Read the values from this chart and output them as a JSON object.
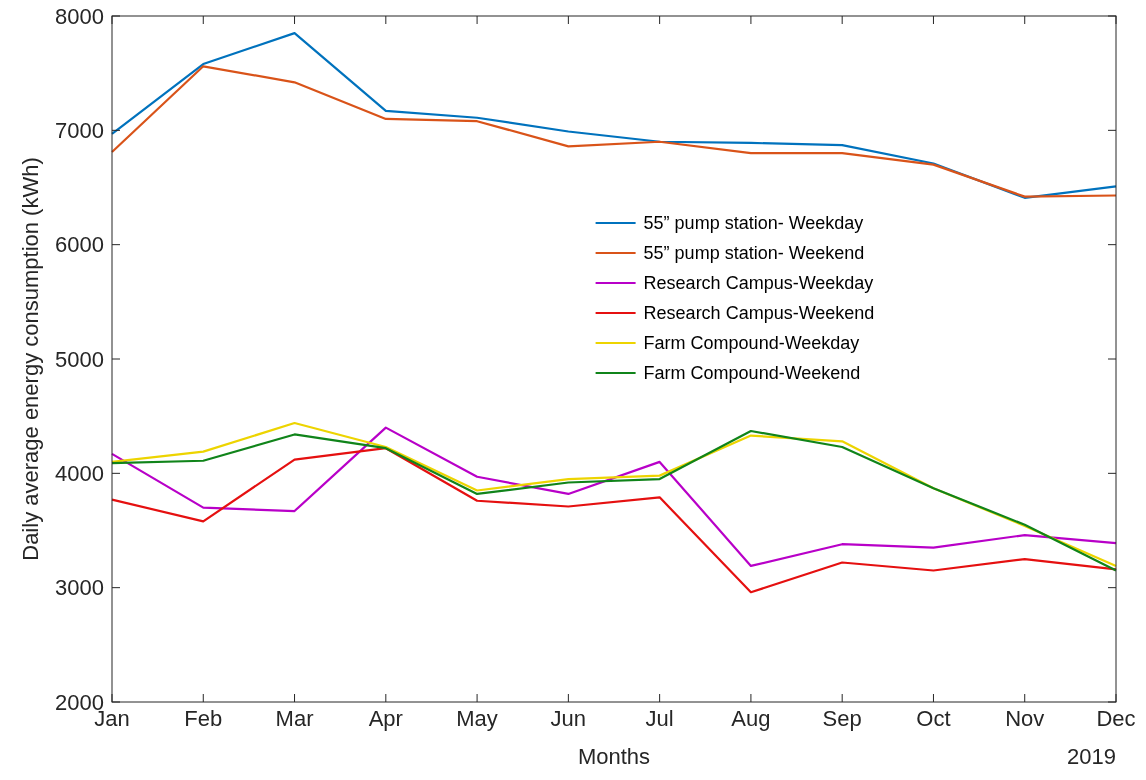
{
  "chart_data": {
    "type": "line",
    "xlabel": "Months",
    "ylabel": "Daily average energy consumption (kWh)",
    "categories": [
      "Jan",
      "Feb",
      "Mar",
      "Apr",
      "May",
      "Jun",
      "Jul",
      "Aug",
      "Sep",
      "Oct",
      "Nov",
      "Dec"
    ],
    "ylim": [
      2000,
      8000
    ],
    "yticks": [
      2000,
      3000,
      4000,
      5000,
      6000,
      7000,
      8000
    ],
    "grid": false,
    "legend": "center",
    "marker": "none",
    "line_style": "solid",
    "annotations": [
      "2019"
    ],
    "series": [
      {
        "name": "55” pump station- Weekday",
        "color": "#0072bd",
        "values": [
          6970,
          7580,
          7850,
          7170,
          7110,
          6990,
          6900,
          6890,
          6870,
          6710,
          6410,
          6510
        ]
      },
      {
        "name": "55” pump station- Weekend",
        "color": "#d95319",
        "values": [
          6810,
          7560,
          7420,
          7100,
          7080,
          6860,
          6900,
          6800,
          6800,
          6700,
          6420,
          6430
        ]
      },
      {
        "name": "Research Campus-Weekday",
        "color": "#b800c8",
        "values": [
          4170,
          3700,
          3670,
          4400,
          3970,
          3820,
          4100,
          3190,
          3380,
          3350,
          3460,
          3390
        ]
      },
      {
        "name": "Research Campus-Weekend",
        "color": "#e51010",
        "values": [
          3770,
          3580,
          4120,
          4220,
          3760,
          3710,
          3790,
          2960,
          3220,
          3150,
          3250,
          3160
        ]
      },
      {
        "name": "Farm Compound-Weekday",
        "color": "#edd400",
        "values": [
          4100,
          4190,
          4440,
          4230,
          3850,
          3950,
          3980,
          4330,
          4280,
          3870,
          3540,
          3190
        ]
      },
      {
        "name": "Farm Compound-Weekend",
        "color": "#10841a",
        "values": [
          4090,
          4110,
          4340,
          4220,
          3820,
          3920,
          3950,
          4370,
          4230,
          3870,
          3550,
          3150
        ]
      }
    ]
  }
}
